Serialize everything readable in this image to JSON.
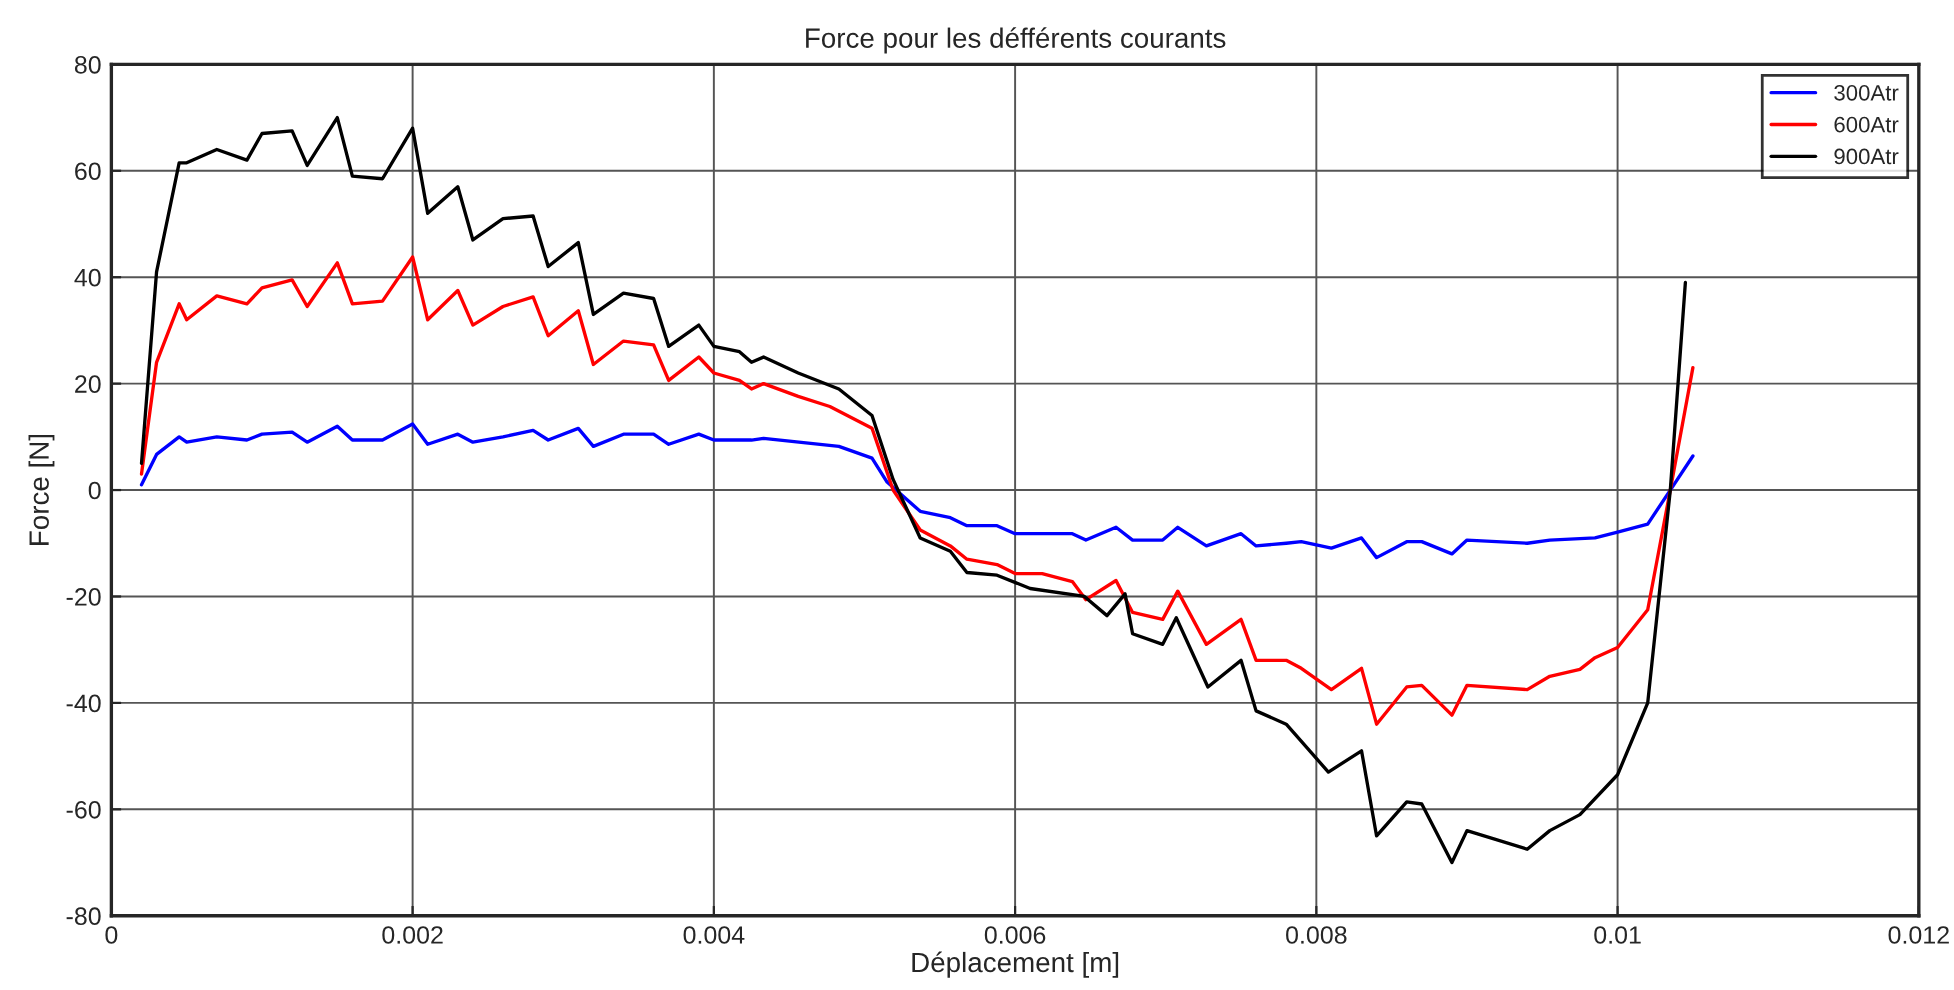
{
  "chart_data": {
    "type": "line",
    "title": "Force pour les défférents courants",
    "xlabel": "Déplacement [m]",
    "ylabel": "Force [N]",
    "series": [
      {
        "name": "300Atr",
        "color": "#0000ff",
        "x": [
          0.0002,
          0.0003,
          0.00045,
          0.0005,
          0.0007,
          0.0009,
          0.001,
          0.0012,
          0.0013,
          0.0015,
          0.0016,
          0.0018,
          0.002,
          0.0021,
          0.0023,
          0.0024,
          0.0026,
          0.0028,
          0.0029,
          0.0031,
          0.0032,
          0.0034,
          0.0036,
          0.0037,
          0.0039,
          0.004,
          0.00425,
          0.00433,
          0.00483,
          0.00505,
          0.00515,
          0.00537,
          0.00557,
          0.00568,
          0.00588,
          0.006,
          0.00638,
          0.00647,
          0.00667,
          0.00678,
          0.00698,
          0.00708,
          0.00727,
          0.0075,
          0.0076,
          0.0078,
          0.0079,
          0.0081,
          0.0083,
          0.0084,
          0.0086,
          0.0087,
          0.0089,
          0.009,
          0.0094,
          0.00955,
          0.00985,
          0.01,
          0.0102,
          0.01035,
          0.0105
        ],
        "values": [
          1,
          6.7,
          10,
          9,
          10,
          9.4,
          10.5,
          10.9,
          9,
          12,
          9.4,
          9.4,
          12.4,
          8.6,
          10.5,
          9,
          10,
          11.2,
          9.4,
          11.6,
          8.2,
          10.5,
          10.5,
          8.6,
          10.5,
          9.4,
          9.4,
          9.7,
          8.2,
          6,
          1.5,
          -4,
          -5.2,
          -6.7,
          -6.7,
          -8.2,
          -8.2,
          -9.4,
          -7,
          -9.4,
          -9.4,
          -7,
          -10.5,
          -8.2,
          -10.5,
          -10,
          -9.7,
          -10.9,
          -9,
          -12.7,
          -9.7,
          -9.7,
          -12,
          -9.4,
          -10,
          -9.4,
          -9,
          -7.9,
          -6.4,
          0,
          6.4
        ]
      },
      {
        "name": "600Atr",
        "color": "#ff0000",
        "x": [
          0.0002,
          0.0003,
          0.00045,
          0.0005,
          0.0007,
          0.0009,
          0.001,
          0.0012,
          0.0013,
          0.0015,
          0.0016,
          0.0018,
          0.002,
          0.0021,
          0.0023,
          0.0024,
          0.0026,
          0.0028,
          0.0029,
          0.0031,
          0.0032,
          0.0034,
          0.0036,
          0.0037,
          0.0039,
          0.004,
          0.00417,
          0.00425,
          0.00433,
          0.00456,
          0.00477,
          0.00505,
          0.00519,
          0.00537,
          0.00557,
          0.00568,
          0.00588,
          0.006,
          0.00618,
          0.00638,
          0.00647,
          0.00667,
          0.00678,
          0.00698,
          0.00708,
          0.00727,
          0.0075,
          0.0076,
          0.0078,
          0.0079,
          0.0081,
          0.0083,
          0.0084,
          0.0086,
          0.0087,
          0.0089,
          0.009,
          0.0094,
          0.00955,
          0.00975,
          0.00985,
          0.01,
          0.0102,
          0.01035,
          0.0105
        ],
        "values": [
          3,
          24,
          35,
          32,
          36.5,
          35,
          38,
          39.5,
          34.5,
          42.7,
          35,
          35.5,
          43.8,
          32,
          37.5,
          31,
          34.5,
          36.3,
          29,
          33.7,
          23.6,
          28,
          27.3,
          20.6,
          25,
          22,
          20.6,
          19,
          20,
          17.6,
          15.7,
          11.6,
          0,
          -7.5,
          -10.5,
          -13,
          -14,
          -15.7,
          -15.7,
          -17.2,
          -20.6,
          -17,
          -23,
          -24.3,
          -19,
          -29,
          -24.3,
          -32,
          -32,
          -33.5,
          -37.5,
          -33.5,
          -44,
          -37,
          -36.7,
          -42.3,
          -36.7,
          -37.5,
          -35,
          -33.7,
          -31.5,
          -29.6,
          -22.5,
          0,
          23
        ]
      },
      {
        "name": "900Atr",
        "color": "#000000",
        "x": [
          0.0002,
          0.0003,
          0.00045,
          0.0005,
          0.0007,
          0.0009,
          0.001,
          0.0012,
          0.0013,
          0.0015,
          0.0016,
          0.0018,
          0.002,
          0.0021,
          0.0023,
          0.0024,
          0.0026,
          0.0028,
          0.0029,
          0.0031,
          0.0032,
          0.0034,
          0.0036,
          0.0037,
          0.0039,
          0.004,
          0.00417,
          0.00425,
          0.00433,
          0.00456,
          0.00483,
          0.00505,
          0.00519,
          0.00537,
          0.00557,
          0.00568,
          0.00588,
          0.0061,
          0.00646,
          0.00661,
          0.00673,
          0.00678,
          0.00698,
          0.00707,
          0.00728,
          0.0075,
          0.0076,
          0.0078,
          0.00808,
          0.0083,
          0.0084,
          0.0086,
          0.0087,
          0.0089,
          0.009,
          0.0094,
          0.00955,
          0.00975,
          0.01,
          0.0102,
          0.01035,
          0.01045
        ],
        "values": [
          5,
          41,
          61.5,
          61.5,
          64,
          62,
          67,
          67.5,
          61,
          70,
          59,
          58.5,
          68,
          52,
          57,
          47,
          51,
          51.5,
          42,
          46.5,
          33,
          37,
          36,
          27,
          31,
          27,
          26,
          24,
          25,
          22,
          19,
          14,
          2,
          -9,
          -11.5,
          -15.5,
          -16,
          -18.5,
          -20,
          -23.6,
          -19.5,
          -27,
          -29,
          -24,
          -37,
          -32,
          -41.5,
          -44,
          -53,
          -49,
          -65,
          -58.6,
          -59,
          -70,
          -64,
          -67.5,
          -64,
          -61,
          -53.5,
          -40,
          0,
          39
        ]
      }
    ],
    "xlim": [
      0,
      0.012
    ],
    "xticks": [
      0,
      0.002,
      0.004,
      0.006,
      0.008,
      0.01,
      0.012
    ],
    "ylim": [
      -80,
      80
    ],
    "yticks": [
      -80,
      -60,
      -40,
      -20,
      0,
      20,
      40,
      60,
      80
    ],
    "grid": true,
    "legend": "top right",
    "marker": "none",
    "line_style": "solid"
  }
}
